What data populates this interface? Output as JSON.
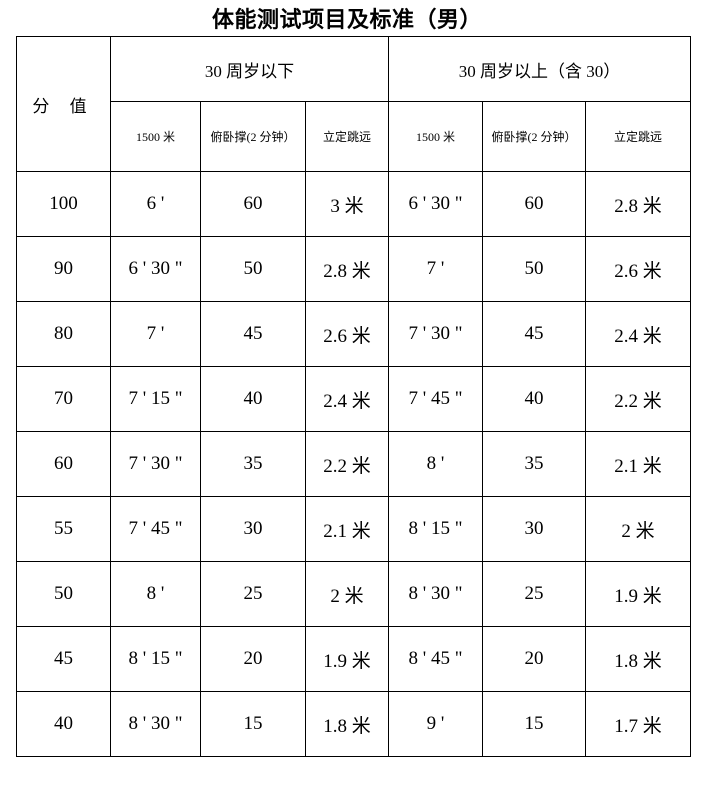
{
  "title": "体能测试项目及标准（男）",
  "header": {
    "score": "分 值",
    "group_under_30": "30 周岁以下",
    "group_over_30": "30 周岁以上（含 30）",
    "columns": [
      "1500 米",
      "俯卧撑(2 分钟）",
      "立定跳远",
      "1500 米",
      "俯卧撑(2 分钟）",
      "立定跳远"
    ]
  },
  "rows": [
    {
      "score": "100",
      "u_run": "6 '",
      "u_push": "60",
      "u_jump": "3 米",
      "o_run": "6 ' 30 \"",
      "o_push": "60",
      "o_jump": "2.8 米"
    },
    {
      "score": "90",
      "u_run": "6 ' 30 \"",
      "u_push": "50",
      "u_jump": "2.8 米",
      "o_run": "7 '",
      "o_push": "50",
      "o_jump": "2.6 米"
    },
    {
      "score": "80",
      "u_run": "7 '",
      "u_push": "45",
      "u_jump": "2.6 米",
      "o_run": "7 ' 30 \"",
      "o_push": "45",
      "o_jump": "2.4 米"
    },
    {
      "score": "70",
      "u_run": "7 ' 15 \"",
      "u_push": "40",
      "u_jump": "2.4 米",
      "o_run": "7 ' 45 \"",
      "o_push": "40",
      "o_jump": "2.2 米"
    },
    {
      "score": "60",
      "u_run": "7 ' 30 \"",
      "u_push": "35",
      "u_jump": "2.2 米",
      "o_run": "8 '",
      "o_push": "35",
      "o_jump": "2.1 米"
    },
    {
      "score": "55",
      "u_run": "7 ' 45 \"",
      "u_push": "30",
      "u_jump": "2.1 米",
      "o_run": "8 ' 15 \"",
      "o_push": "30",
      "o_jump": "2 米"
    },
    {
      "score": "50",
      "u_run": "8 '",
      "u_push": "25",
      "u_jump": "2 米",
      "o_run": "8 ' 30 \"",
      "o_push": "25",
      "o_jump": "1.9 米"
    },
    {
      "score": "45",
      "u_run": "8 ' 15 \"",
      "u_push": "20",
      "u_jump": "1.9 米",
      "o_run": "8 ' 45 \"",
      "o_push": "20",
      "o_jump": "1.8 米"
    },
    {
      "score": "40",
      "u_run": "8 ' 30 \"",
      "u_push": "15",
      "u_jump": "1.8 米",
      "o_run": "9 '",
      "o_push": "15",
      "o_jump": "1.7 米"
    }
  ]
}
